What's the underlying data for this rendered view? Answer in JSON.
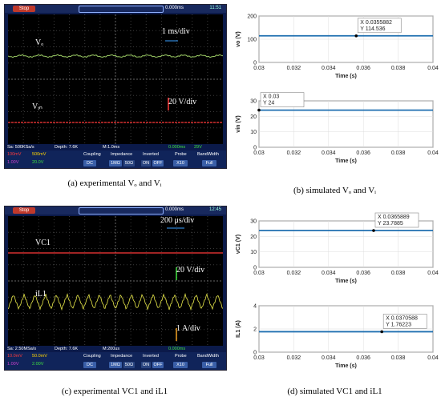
{
  "chart_data": [
    {
      "panel": "a",
      "type": "line",
      "caption": "(a) experimental Vₒ and Vᵢ",
      "scope": {
        "run_state": "Stop",
        "time_offset": "0.000ms",
        "clock": "11:51",
        "sample_rate": "Sa: 500KSa/s",
        "depth": "Depth: 7.6K",
        "timebase": "M:1.0ms",
        "trigger": "0.000ms",
        "trigger_level": "29V",
        "ch1_scale": "100mV",
        "ch2_scale": "500mV",
        "ch3_scale": "1.00V",
        "ch4_scale": "20.0V"
      },
      "annotations": {
        "trace_top": "Vₒ",
        "trace_bottom": "Vᵢₙ",
        "time_div": "1 ms/div",
        "volt_div": "20 V/div"
      }
    },
    {
      "panel": "b",
      "type": "line",
      "caption": "(b) simulated Vₒ and Vᵢ",
      "subplots": [
        {
          "ylabel": "vo (V)",
          "xlabel": "Time (s)",
          "xlim": [
            0.03,
            0.04
          ],
          "ylim": [
            0,
            200
          ],
          "yticks": [
            0,
            100,
            200
          ],
          "xticks": [
            "0.03",
            "0.032",
            "0.034",
            "0.036",
            "0.038",
            "0.04"
          ],
          "x": [
            0.03,
            0.04
          ],
          "y": [
            114.536,
            114.536
          ],
          "datatip": {
            "x": "X 0.0355882",
            "y": "Y 114.536"
          }
        },
        {
          "ylabel": "vin (V)",
          "xlabel": "Time (s)",
          "xlim": [
            0.03,
            0.04
          ],
          "ylim": [
            0,
            30
          ],
          "yticks": [
            0,
            10,
            20,
            30
          ],
          "xticks": [
            "0.03",
            "0.032",
            "0.034",
            "0.036",
            "0.038",
            "0.04"
          ],
          "x": [
            0.03,
            0.04
          ],
          "y": [
            24,
            24
          ],
          "datatip": {
            "x": "X 0.03",
            "y": "Y 24"
          }
        }
      ]
    },
    {
      "panel": "c",
      "type": "line",
      "caption": "(c) experimental VC1 and iL1",
      "scope": {
        "run_state": "Stop",
        "time_offset": "0.000ms",
        "clock": "12:45",
        "sample_rate": "Sa: 2.50MSa/s",
        "depth": "Depth: 7.6K",
        "timebase": "M:200us",
        "trigger": "0.000ms",
        "trigger_level": "",
        "ch1_scale": "10.0mV",
        "ch2_scale": "50.0mV",
        "ch3_scale": "1.00V",
        "ch4_scale": "2.00V"
      },
      "annotations": {
        "trace_top": "VC1",
        "trace_bottom": "iL1",
        "time_div": "200 μs/div",
        "volt_div": "20 V/div",
        "amp_div": "1 A/div"
      }
    },
    {
      "panel": "d",
      "type": "line",
      "caption": "(d) simulated VC1 and iL1",
      "subplots": [
        {
          "ylabel": "vC1 (V)",
          "xlabel": "Time (s)",
          "xlim": [
            0.03,
            0.04
          ],
          "ylim": [
            0,
            30
          ],
          "yticks": [
            0,
            10,
            20,
            30
          ],
          "xticks": [
            "0.03",
            "0.032",
            "0.034",
            "0.036",
            "0.038",
            "0.04"
          ],
          "x": [
            0.03,
            0.04
          ],
          "y": [
            23.7885,
            23.7885
          ],
          "datatip": {
            "x": "X 0.0365889",
            "y": "Y 23.7885"
          }
        },
        {
          "ylabel": "IL1 (A)",
          "xlabel": "Time (s)",
          "xlim": [
            0.03,
            0.04
          ],
          "ylim": [
            0,
            4
          ],
          "yticks": [
            0,
            2,
            4
          ],
          "xticks": [
            "0.03",
            "0.032",
            "0.034",
            "0.036",
            "0.038",
            "0.04"
          ],
          "x": [
            0.03,
            0.04
          ],
          "y": [
            1.76223,
            1.76223
          ],
          "datatip": {
            "x": "X 0.0370588",
            "y": "Y 1.76223"
          }
        }
      ]
    }
  ],
  "menu": {
    "coupling": "Coupling",
    "impedance": "Impedance",
    "inverted": "Inverted",
    "probe": "Probe",
    "bandwidth": "BandWidth",
    "dc": "DC",
    "imo": "1MΩ",
    "ohm50": "50Ω",
    "on": "ON",
    "off": "OFF",
    "x10": "X10",
    "full": "Full"
  },
  "colors": {
    "ch1": "#ff3b3b",
    "ch2": "#ffd400",
    "ch3": "#d040d0",
    "ch4": "#40e040",
    "sim_line": "#1f6fb0",
    "scope_bg": "#0b1a4a"
  }
}
